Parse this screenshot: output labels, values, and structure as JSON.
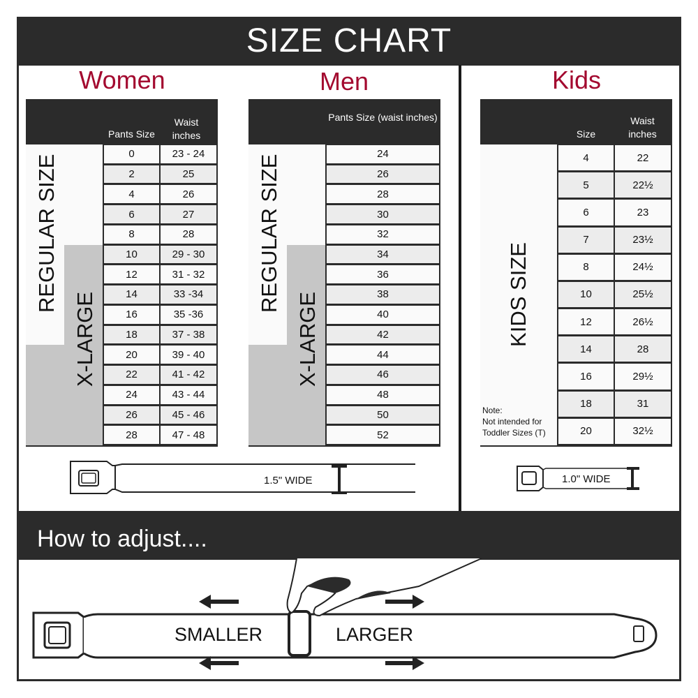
{
  "title": "SIZE CHART",
  "colors": {
    "dark": "#2b2b2b",
    "accent": "#a3092f",
    "xlarge": "#c6c6c6",
    "row_light": "#fafafa",
    "row_alt": "#ececec"
  },
  "women": {
    "title": "Women",
    "header_pants": "Pants Size",
    "header_waist": "Waist inches",
    "regular_label": "REGULAR SIZE",
    "xlarge_label": "X-LARGE",
    "rows": [
      [
        "0",
        "23 - 24"
      ],
      [
        "2",
        "25"
      ],
      [
        "4",
        "26"
      ],
      [
        "6",
        "27"
      ],
      [
        "8",
        "28"
      ],
      [
        "10",
        "29 - 30"
      ],
      [
        "12",
        "31 - 32"
      ],
      [
        "14",
        "33 -34"
      ],
      [
        "16",
        "35 -36"
      ],
      [
        "18",
        "37 - 38"
      ],
      [
        "20",
        "39 - 40"
      ],
      [
        "22",
        "41 - 42"
      ],
      [
        "24",
        "43 - 44"
      ],
      [
        "26",
        "45 - 46"
      ],
      [
        "28",
        "47 - 48"
      ]
    ],
    "belt_width": "1.5\" WIDE"
  },
  "men": {
    "title": "Men",
    "header": "Pants Size (waist inches)",
    "regular_label": "REGULAR SIZE",
    "xlarge_label": "X-LARGE",
    "rows": [
      "24",
      "26",
      "28",
      "30",
      "32",
      "34",
      "36",
      "38",
      "40",
      "42",
      "44",
      "46",
      "48",
      "50",
      "52"
    ]
  },
  "kids": {
    "title": "Kids",
    "header_size": "Size",
    "header_waist": "Waist inches",
    "label": "KIDS SIZE",
    "note_title": "Note:",
    "note_text": "Not intended for Toddler Sizes (T)",
    "rows": [
      [
        "4",
        "22"
      ],
      [
        "5",
        "22½"
      ],
      [
        "6",
        "23"
      ],
      [
        "7",
        "23½"
      ],
      [
        "8",
        "24½"
      ],
      [
        "10",
        "25½"
      ],
      [
        "12",
        "26½"
      ],
      [
        "14",
        "28"
      ],
      [
        "16",
        "29½"
      ],
      [
        "18",
        "31"
      ],
      [
        "20",
        "32½"
      ]
    ],
    "belt_width": "1.0\" WIDE"
  },
  "adjust": {
    "title": "How to adjust....",
    "smaller": "SMALLER",
    "larger": "LARGER"
  }
}
